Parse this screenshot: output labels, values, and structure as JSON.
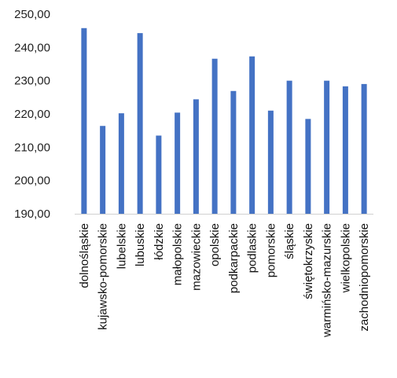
{
  "chart_data": {
    "type": "bar",
    "categories": [
      "dolnośląskie",
      "kujawsko-pomorskie",
      "lubelskie",
      "lubuskie",
      "łódzkie",
      "małopolskie",
      "mazowieckie",
      "opolskie",
      "podkarpackie",
      "podlaskie",
      "pomorskie",
      "śląskie",
      "świętokrzyskie",
      "warmińsko-mazurskie",
      "wielkopolskie",
      "zachodniopomorskie"
    ],
    "values": [
      245.8,
      216.4,
      220.2,
      244.3,
      213.5,
      220.4,
      224.4,
      236.6,
      226.9,
      237.3,
      221.0,
      230.0,
      218.5,
      230.0,
      228.3,
      229.0
    ],
    "ylim": [
      190,
      250
    ],
    "yticks": [
      "190,00",
      "200,00",
      "210,00",
      "220,00",
      "230,00",
      "240,00",
      "250,00"
    ],
    "ytick_values": [
      190,
      200,
      210,
      220,
      230,
      240,
      250
    ],
    "bar_color": "#4472c4",
    "axis_color": "#d0d0d0",
    "grid": false,
    "legend": "none"
  }
}
